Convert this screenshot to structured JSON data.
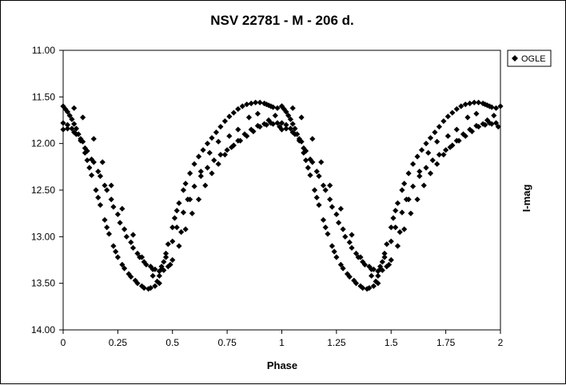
{
  "chart_data": {
    "type": "scatter",
    "title": "NSV 22781 - M - 206 d.",
    "xlabel": "Phase",
    "ylabel": "I-mag",
    "xlim": [
      0,
      2
    ],
    "ylim": [
      11.0,
      14.0
    ],
    "y_inverted": true,
    "grid": false,
    "legend_position": "top-right",
    "x_ticks": [
      0,
      0.25,
      0.5,
      0.75,
      1,
      1.25,
      1.5,
      1.75,
      2
    ],
    "x_tick_labels": [
      "0",
      "0.25",
      "0.5",
      "0.75",
      "1",
      "1.25",
      "1.5",
      "1.75",
      "2"
    ],
    "y_ticks": [
      11.0,
      11.5,
      12.0,
      12.5,
      13.0,
      13.5,
      14.0
    ],
    "y_tick_labels": [
      "11.00",
      "11.50",
      "12.00",
      "12.50",
      "13.00",
      "13.50",
      "14.00"
    ],
    "marker_color": "#000000",
    "series": [
      {
        "name": "OGLE",
        "marker": "diamond",
        "x": [
          0.0,
          0.01,
          0.02,
          0.03,
          0.04,
          0.05,
          0.06,
          0.07,
          0.08,
          0.1,
          0.11,
          0.12,
          0.13,
          0.15,
          0.16,
          0.17,
          0.19,
          0.2,
          0.21,
          0.23,
          0.24,
          0.25,
          0.27,
          0.28,
          0.3,
          0.31,
          0.33,
          0.34,
          0.36,
          0.37,
          0.39,
          0.4,
          0.42,
          0.43,
          0.44,
          0.45,
          0.46,
          0.47,
          0.48,
          0.5,
          0.51,
          0.52,
          0.53,
          0.55,
          0.56,
          0.58,
          0.6,
          0.62,
          0.64,
          0.66,
          0.68,
          0.7,
          0.72,
          0.74,
          0.76,
          0.78,
          0.8,
          0.82,
          0.84,
          0.86,
          0.88,
          0.9,
          0.92,
          0.93,
          0.94,
          0.95,
          0.96,
          0.98,
          1.0,
          0.0,
          0.02,
          0.04,
          0.06,
          0.09,
          0.11,
          0.14,
          0.17,
          0.2,
          0.23,
          0.26,
          0.29,
          0.32,
          0.35,
          0.38,
          0.41,
          0.44,
          0.46,
          0.48,
          0.5,
          0.53,
          0.56,
          0.59,
          0.62,
          0.65,
          0.68,
          0.71,
          0.74,
          0.77,
          0.8,
          0.83,
          0.86,
          0.89,
          0.92,
          0.95,
          0.98,
          0.0,
          0.02,
          0.05,
          0.08,
          0.1,
          0.13,
          0.16,
          0.19,
          0.22,
          0.25,
          0.28,
          0.31,
          0.34,
          0.37,
          0.4,
          0.42,
          0.45,
          0.47,
          0.5,
          0.52,
          0.55,
          0.57,
          0.6,
          0.63,
          0.66,
          0.69,
          0.72,
          0.75,
          0.78,
          0.81,
          0.84,
          0.87,
          0.9,
          0.93,
          0.96,
          0.99,
          0.05,
          0.09,
          0.14,
          0.18,
          0.22,
          0.27,
          0.32,
          0.36,
          0.41,
          0.44,
          0.49,
          0.54,
          0.58,
          0.63,
          0.67,
          0.71,
          0.76,
          0.8,
          0.85,
          0.89,
          0.94,
          0.97
        ],
        "y": [
          11.6,
          11.63,
          11.66,
          11.7,
          11.74,
          11.79,
          11.84,
          11.9,
          11.97,
          12.1,
          12.18,
          12.26,
          12.34,
          12.5,
          12.58,
          12.66,
          12.82,
          12.9,
          12.97,
          13.1,
          13.16,
          13.22,
          13.3,
          13.34,
          13.4,
          13.43,
          13.47,
          13.5,
          13.53,
          13.55,
          13.56,
          13.55,
          13.53,
          13.48,
          13.42,
          13.35,
          13.27,
          13.18,
          13.08,
          12.9,
          12.8,
          12.72,
          12.64,
          12.5,
          12.43,
          12.32,
          12.22,
          12.14,
          12.07,
          12.0,
          11.94,
          11.88,
          11.82,
          11.76,
          11.71,
          11.67,
          11.63,
          11.6,
          11.58,
          11.57,
          11.56,
          11.56,
          11.57,
          11.58,
          11.59,
          11.6,
          11.61,
          11.62,
          11.6,
          11.78,
          11.8,
          11.84,
          11.9,
          11.98,
          12.08,
          12.2,
          12.35,
          12.5,
          12.68,
          12.85,
          13.0,
          13.12,
          13.22,
          13.3,
          13.35,
          13.37,
          13.36,
          13.32,
          13.25,
          13.1,
          12.92,
          12.75,
          12.6,
          12.45,
          12.32,
          12.22,
          12.12,
          12.04,
          11.97,
          11.9,
          11.85,
          11.81,
          11.79,
          11.78,
          11.78,
          11.85,
          11.84,
          11.88,
          11.95,
          12.05,
          12.17,
          12.3,
          12.45,
          12.6,
          12.76,
          12.92,
          13.06,
          13.18,
          13.27,
          13.32,
          13.35,
          13.32,
          13.22,
          13.05,
          12.9,
          12.74,
          12.6,
          12.46,
          12.35,
          12.26,
          12.18,
          12.12,
          12.07,
          12.02,
          11.97,
          11.92,
          11.87,
          11.82,
          11.8,
          11.79,
          11.82,
          11.62,
          11.72,
          11.95,
          12.2,
          12.45,
          12.7,
          12.98,
          13.22,
          13.42,
          13.5,
          13.3,
          12.95,
          12.6,
          12.3,
          12.1,
          11.98,
          11.92,
          11.85,
          11.72,
          11.68,
          11.75,
          11.7
        ]
      }
    ]
  }
}
